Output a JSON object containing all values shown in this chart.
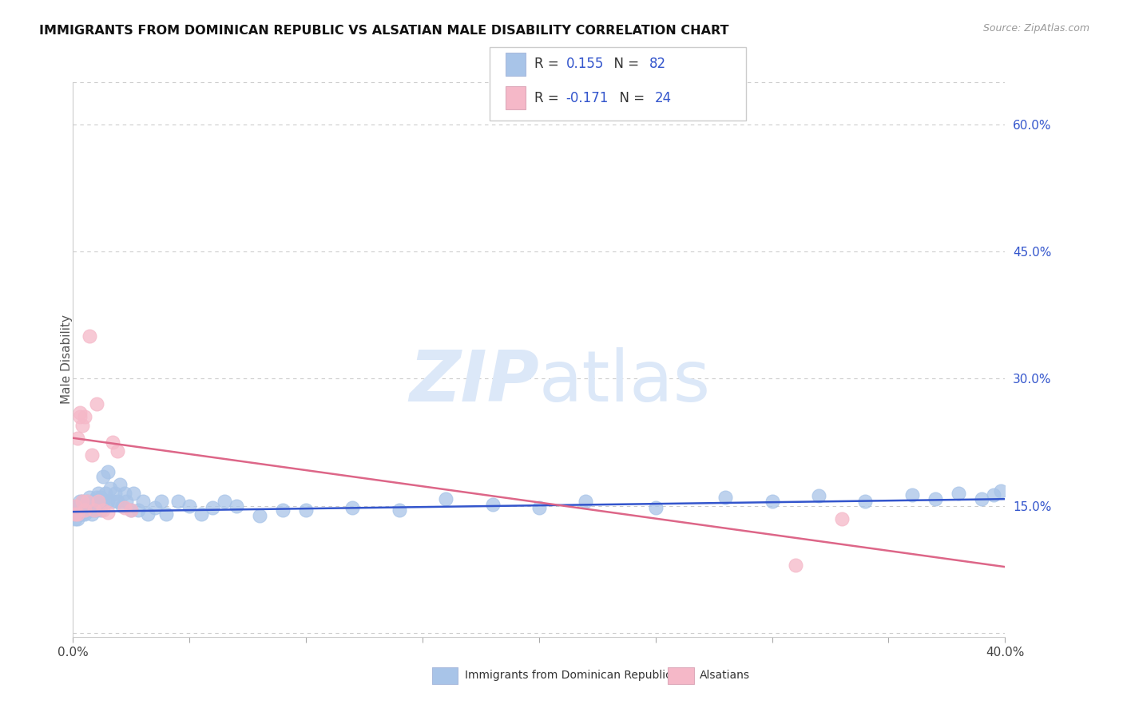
{
  "title": "IMMIGRANTS FROM DOMINICAN REPUBLIC VS ALSATIAN MALE DISABILITY CORRELATION CHART",
  "source": "Source: ZipAtlas.com",
  "ylabel": "Male Disability",
  "right_yticks": [
    0.0,
    0.15,
    0.3,
    0.45,
    0.6
  ],
  "right_yticklabels": [
    "",
    "15.0%",
    "30.0%",
    "45.0%",
    "60.0%"
  ],
  "xmin": 0.0,
  "xmax": 0.4,
  "ymin": -0.005,
  "ymax": 0.65,
  "blue_R": "0.155",
  "blue_N": "82",
  "pink_R": "-0.171",
  "pink_N": "24",
  "legend_label_blue": "Immigrants from Dominican Republic",
  "legend_label_pink": "Alsatians",
  "blue_color": "#a8c4e8",
  "pink_color": "#f5b8c8",
  "blue_line_color": "#3355cc",
  "pink_line_color": "#dd6688",
  "text_blue_color": "#3355cc",
  "text_dark_color": "#333333",
  "watermark_color": "#dce8f8",
  "grid_color": "#cccccc",
  "blue_scatter_x": [
    0.001,
    0.001,
    0.001,
    0.002,
    0.002,
    0.002,
    0.002,
    0.003,
    0.003,
    0.003,
    0.003,
    0.004,
    0.004,
    0.004,
    0.005,
    0.005,
    0.005,
    0.006,
    0.006,
    0.006,
    0.007,
    0.007,
    0.007,
    0.008,
    0.008,
    0.008,
    0.009,
    0.009,
    0.01,
    0.01,
    0.01,
    0.011,
    0.011,
    0.012,
    0.012,
    0.013,
    0.013,
    0.014,
    0.015,
    0.015,
    0.016,
    0.017,
    0.018,
    0.019,
    0.02,
    0.021,
    0.022,
    0.023,
    0.025,
    0.026,
    0.028,
    0.03,
    0.032,
    0.035,
    0.038,
    0.04,
    0.045,
    0.05,
    0.055,
    0.06,
    0.065,
    0.07,
    0.08,
    0.09,
    0.1,
    0.12,
    0.14,
    0.16,
    0.18,
    0.2,
    0.22,
    0.25,
    0.28,
    0.3,
    0.32,
    0.34,
    0.36,
    0.37,
    0.38,
    0.39,
    0.395,
    0.398
  ],
  "blue_scatter_y": [
    0.14,
    0.145,
    0.135,
    0.15,
    0.14,
    0.145,
    0.135,
    0.155,
    0.145,
    0.14,
    0.15,
    0.145,
    0.14,
    0.155,
    0.15,
    0.14,
    0.145,
    0.155,
    0.145,
    0.15,
    0.16,
    0.15,
    0.145,
    0.155,
    0.145,
    0.14,
    0.15,
    0.145,
    0.16,
    0.15,
    0.145,
    0.165,
    0.15,
    0.16,
    0.145,
    0.185,
    0.155,
    0.165,
    0.19,
    0.155,
    0.17,
    0.155,
    0.165,
    0.155,
    0.175,
    0.15,
    0.165,
    0.155,
    0.145,
    0.165,
    0.145,
    0.155,
    0.14,
    0.148,
    0.155,
    0.14,
    0.155,
    0.15,
    0.14,
    0.148,
    0.155,
    0.15,
    0.138,
    0.145,
    0.145,
    0.148,
    0.145,
    0.158,
    0.152,
    0.148,
    0.155,
    0.148,
    0.16,
    0.155,
    0.162,
    0.155,
    0.163,
    0.158,
    0.165,
    0.158,
    0.163,
    0.168
  ],
  "pink_scatter_x": [
    0.001,
    0.001,
    0.002,
    0.002,
    0.003,
    0.003,
    0.004,
    0.004,
    0.005,
    0.005,
    0.006,
    0.007,
    0.008,
    0.009,
    0.01,
    0.011,
    0.013,
    0.015,
    0.017,
    0.019,
    0.022,
    0.025,
    0.31,
    0.33
  ],
  "pink_scatter_y": [
    0.14,
    0.15,
    0.23,
    0.14,
    0.255,
    0.26,
    0.245,
    0.155,
    0.255,
    0.145,
    0.155,
    0.35,
    0.21,
    0.145,
    0.27,
    0.155,
    0.145,
    0.142,
    0.225,
    0.215,
    0.148,
    0.145,
    0.08,
    0.135
  ],
  "blue_trend_x": [
    0.0,
    0.4
  ],
  "blue_trend_y": [
    0.143,
    0.158
  ],
  "pink_trend_x": [
    0.0,
    0.4
  ],
  "pink_trend_y": [
    0.23,
    0.078
  ]
}
